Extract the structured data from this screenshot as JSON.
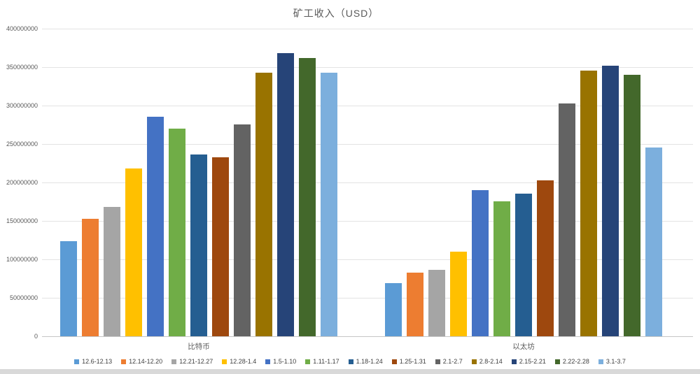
{
  "title": "矿工收入（USD）",
  "chart_data": {
    "type": "bar",
    "title": "矿工收入（USD）",
    "categories": [
      "比特币",
      "以太坊"
    ],
    "xlabel": "",
    "ylabel": "",
    "ylim": [
      0,
      400000000
    ],
    "ytick_step": 50000000,
    "ytick_labels": [
      "0",
      "50000000",
      "100000000",
      "150000000",
      "200000000",
      "250000000",
      "300000000",
      "350000000",
      "400000000"
    ],
    "grid": true,
    "legend_position": "bottom",
    "series": [
      {
        "name": "12.6-12.13",
        "color": "#5B9BD5",
        "values": [
          124000000,
          69000000
        ]
      },
      {
        "name": "12.14-12.20",
        "color": "#ED7D31",
        "values": [
          153000000,
          83000000
        ]
      },
      {
        "name": "12.21-12.27",
        "color": "#A5A5A5",
        "values": [
          168000000,
          86000000
        ]
      },
      {
        "name": "12.28-1.4",
        "color": "#FFC000",
        "values": [
          218000000,
          110000000
        ]
      },
      {
        "name": "1.5-1.10",
        "color": "#4472C4",
        "values": [
          285000000,
          190000000
        ]
      },
      {
        "name": "1.11-1.17",
        "color": "#70AD47",
        "values": [
          270000000,
          175000000
        ]
      },
      {
        "name": "1.18-1.24",
        "color": "#255E91",
        "values": [
          236000000,
          185000000
        ]
      },
      {
        "name": "1.25-1.31",
        "color": "#9E480E",
        "values": [
          233000000,
          203000000
        ]
      },
      {
        "name": "2.1-2.7",
        "color": "#636363",
        "values": [
          275000000,
          303000000
        ]
      },
      {
        "name": "2.8-2.14",
        "color": "#997300",
        "values": [
          343000000,
          345000000
        ]
      },
      {
        "name": "2.15-2.21",
        "color": "#264478",
        "values": [
          368000000,
          352000000
        ]
      },
      {
        "name": "2.22-2.28",
        "color": "#43682B",
        "values": [
          362000000,
          340000000
        ]
      },
      {
        "name": "3.1-3.7",
        "color": "#7CAFDD",
        "values": [
          343000000,
          245000000
        ]
      }
    ]
  }
}
